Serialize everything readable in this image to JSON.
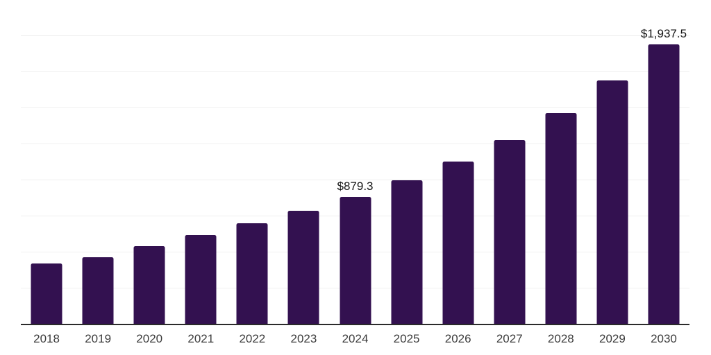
{
  "chart_data": {
    "type": "bar",
    "title": "",
    "xlabel": "",
    "ylabel": "",
    "categories": [
      "2018",
      "2019",
      "2020",
      "2021",
      "2022",
      "2023",
      "2024",
      "2025",
      "2026",
      "2027",
      "2028",
      "2029",
      "2030"
    ],
    "values": [
      420,
      464,
      541,
      618,
      696,
      783,
      879.3,
      995,
      1126,
      1276,
      1464,
      1686,
      1937.5
    ],
    "value_labels": [
      null,
      null,
      null,
      null,
      null,
      null,
      "$879.3",
      null,
      null,
      null,
      null,
      null,
      "$1,937.5"
    ],
    "ylim": [
      0,
      2250
    ],
    "gridline_step": 250,
    "grid": true,
    "legend_position": "none",
    "y_axis_labels_visible": false,
    "colors": {
      "bar": "#331150",
      "gridline": "#F0F0F0",
      "axis": "#2B2B2B",
      "tick_label": "#3C3C3C",
      "value_label": "#141414",
      "background": "#FFFFFF"
    }
  }
}
